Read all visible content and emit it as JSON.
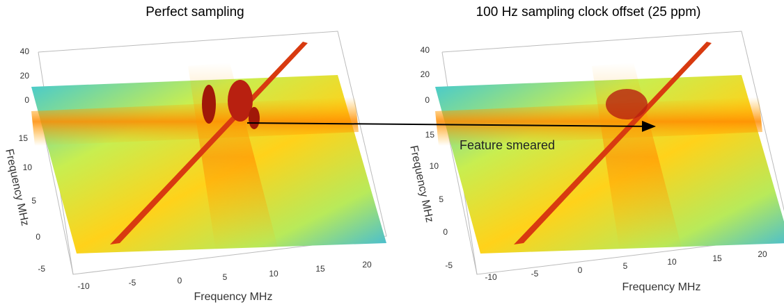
{
  "panels": [
    {
      "title": "Perfect sampling",
      "z_ticks": [
        40,
        20,
        0
      ],
      "y_label": "Frequency MHz",
      "y_ticks": [
        15,
        10,
        5,
        0,
        -5
      ],
      "x_label": "Frequency MHz",
      "x_ticks": [
        -10,
        -5,
        0,
        5,
        10,
        15,
        20
      ]
    },
    {
      "title": "100 Hz sampling clock offset (25 ppm)",
      "z_ticks": [
        40,
        20,
        0
      ],
      "y_label": "Frequency MHz",
      "y_ticks": [
        15,
        10,
        5,
        0,
        -5
      ],
      "x_label": "Frequency MHz",
      "x_ticks": [
        -10,
        -5,
        0,
        5,
        10,
        15,
        20
      ]
    }
  ],
  "annotation": "Feature smeared"
}
